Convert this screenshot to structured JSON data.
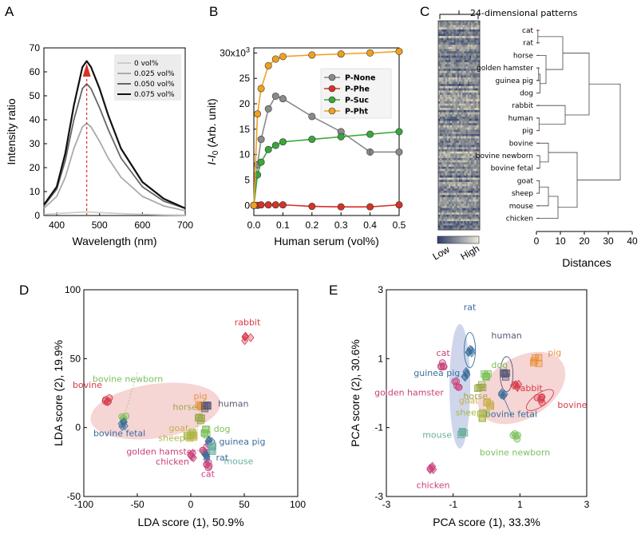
{
  "panels": {
    "A": "A",
    "B": "B",
    "C": "C",
    "D": "D",
    "E": "E"
  },
  "colors": {
    "P-None": "#8a8a8a",
    "P-Phe": "#d63227",
    "P-Suc": "#3aa63a",
    "P-Pht": "#f0a020",
    "cat": "#c8417a",
    "rat": "#3a6e9a",
    "horse": "#9aa84a",
    "golden hamster": "#c8417a",
    "guinea pig": "#3a6e9a",
    "dog": "#7cbf5a",
    "rabbit": "#d63a4a",
    "human": "#5a5a78",
    "pig": "#e8913a",
    "bovine": "#d63a4a",
    "bovine newborn": "#7cbf5a",
    "bovine fetal": "#3a6e9a",
    "goat": "#c8b04a",
    "sheep": "#a8b848",
    "mouse": "#6ab0a0",
    "chicken": "#c8417a"
  },
  "chart_data": [
    {
      "id": "A",
      "type": "line",
      "xlabel": "Wavelength (nm)",
      "ylabel": "Intensity ratio",
      "xlim": [
        370,
        700
      ],
      "ylim": [
        0,
        70
      ],
      "xticks": [
        "400",
        "500",
        "600",
        "700"
      ],
      "yticks": [
        "0",
        "10",
        "20",
        "30",
        "40",
        "50",
        "60",
        "70"
      ],
      "peak_x": 470,
      "series": [
        {
          "name": "0 vol%",
          "color": "#cccccc",
          "x": [
            370,
            400,
            440,
            470,
            500,
            550,
            600,
            650,
            700
          ],
          "values": [
            0.5,
            0.8,
            1.2,
            1.5,
            1.2,
            0.8,
            0.5,
            0.3,
            0.2
          ]
        },
        {
          "name": "0.025 vol%",
          "color": "#aaaaaa",
          "x": [
            370,
            400,
            420,
            440,
            460,
            470,
            480,
            500,
            520,
            550,
            600,
            650,
            700
          ],
          "values": [
            3,
            8,
            16,
            28,
            37,
            38.5,
            37,
            31,
            24,
            16,
            8,
            4,
            2
          ]
        },
        {
          "name": "0.050 vol%",
          "color": "#666666",
          "x": [
            370,
            400,
            420,
            440,
            460,
            470,
            480,
            500,
            520,
            550,
            600,
            650,
            700
          ],
          "values": [
            4,
            11,
            23,
            40,
            53,
            55,
            53,
            45,
            36,
            24,
            12,
            6,
            3
          ]
        },
        {
          "name": "0.075 vol%",
          "color": "#111111",
          "x": [
            370,
            400,
            420,
            440,
            460,
            470,
            480,
            500,
            520,
            550,
            600,
            650,
            700
          ],
          "values": [
            4.5,
            12,
            26,
            46,
            62,
            64.5,
            62,
            53,
            42,
            28,
            14,
            7,
            3
          ]
        }
      ]
    },
    {
      "id": "B",
      "type": "line",
      "xlabel": "Human serum (vol%)",
      "ylabel": "I-I0 (Arb. unit)",
      "ylabel_main": "I",
      "ylabel_dash": "-",
      "ylabel_sub": "0",
      "ylabel_unit": " (Arb. unit)",
      "xlim": [
        0,
        0.5
      ],
      "ylim": [
        -2,
        31
      ],
      "xticks": [
        "0.0",
        "0.1",
        "0.2",
        "0.3",
        "0.4",
        "0.5"
      ],
      "yticks": [
        "0",
        "5",
        "10",
        "15",
        "20",
        "25"
      ],
      "ytop_label": "30x10",
      "ytop_exp": "3",
      "x": [
        0,
        0.0125,
        0.025,
        0.05,
        0.075,
        0.1,
        0.2,
        0.3,
        0.4,
        0.5
      ],
      "series": [
        {
          "name": "P-None",
          "values": [
            0,
            8,
            13,
            19,
            21.5,
            21,
            17.5,
            14.5,
            10.5,
            10.5
          ]
        },
        {
          "name": "P-Phe",
          "values": [
            0,
            0,
            0.1,
            0.1,
            0.1,
            0.1,
            -0.2,
            -0.3,
            -0.3,
            0.1
          ]
        },
        {
          "name": "P-Suc",
          "values": [
            0,
            6,
            8.5,
            11,
            11.8,
            12.5,
            13,
            13.5,
            14,
            14.5
          ]
        },
        {
          "name": "P-Pht",
          "values": [
            0,
            18,
            23,
            27.5,
            28.8,
            29.3,
            29.6,
            29.8,
            30,
            30.3
          ]
        }
      ]
    },
    {
      "id": "C",
      "type": "heatmap",
      "title": "24-dimensional patterns",
      "xlabel": "Distances",
      "xlim": [
        0,
        40
      ],
      "xticks": [
        "0",
        "10",
        "20",
        "30",
        "40"
      ],
      "scale_low": "Low",
      "scale_high": "High",
      "leaves": [
        "cat",
        "rat",
        "horse",
        "golden hamster",
        "guinea pig",
        "dog",
        "rabbit",
        "human",
        "pig",
        "bovine",
        "bovine newborn",
        "bovine fetal",
        "goat",
        "sheep",
        "mouse",
        "chicken"
      ]
    },
    {
      "id": "D",
      "type": "scatter",
      "xlabel": "LDA score (1), 50.9%",
      "ylabel": "LDA score (2), 19.9%",
      "xlim": [
        -100,
        100
      ],
      "ylim": [
        -50,
        100
      ],
      "xticks": [
        "-100",
        "-50",
        "0",
        "50",
        "100"
      ],
      "yticks": [
        "-50",
        "0",
        "50",
        "100"
      ],
      "points": [
        {
          "name": "rabbit",
          "x": 53,
          "y": 65
        },
        {
          "name": "bovine newborn",
          "x": -62,
          "y": 7
        },
        {
          "name": "bovine",
          "x": -78,
          "y": 20
        },
        {
          "name": "bovine fetal",
          "x": -63,
          "y": 3
        },
        {
          "name": "pig",
          "x": 9,
          "y": 15
        },
        {
          "name": "human",
          "x": 15,
          "y": 14
        },
        {
          "name": "horse",
          "x": 9,
          "y": 7
        },
        {
          "name": "goat",
          "x": 1,
          "y": -6
        },
        {
          "name": "sheep",
          "x": -1,
          "y": -5
        },
        {
          "name": "dog",
          "x": 14,
          "y": -3
        },
        {
          "name": "guinea pig",
          "x": 19,
          "y": -10
        },
        {
          "name": "golden hamster",
          "x": 12,
          "y": -16
        },
        {
          "name": "mouse",
          "x": 22,
          "y": -15
        },
        {
          "name": "rat",
          "x": 16,
          "y": -21
        },
        {
          "name": "chicken",
          "x": 0,
          "y": -20
        },
        {
          "name": "cat",
          "x": 16,
          "y": -27
        }
      ]
    },
    {
      "id": "E",
      "type": "scatter",
      "xlabel": "PCA score (1), 33.3%",
      "ylabel": "PCA score (2), 30.6%",
      "xlim": [
        -3,
        3
      ],
      "ylim": [
        -3,
        3
      ],
      "xticks": [
        "-3",
        "-1",
        "1",
        "3"
      ],
      "yticks": [
        "-3",
        "-1",
        "1",
        "3"
      ],
      "points": [
        {
          "name": "rat",
          "x": -0.5,
          "y": 1.25
        },
        {
          "name": "cat",
          "x": -1.3,
          "y": 0.85
        },
        {
          "name": "guinea pig",
          "x": -0.65,
          "y": 0.55
        },
        {
          "name": "dog",
          "x": -0.05,
          "y": 0.55
        },
        {
          "name": "golden hamster",
          "x": -0.9,
          "y": 0.25
        },
        {
          "name": "horse",
          "x": -0.2,
          "y": 0.2
        },
        {
          "name": "human",
          "x": 0.6,
          "y": 0.55
        },
        {
          "name": "pig",
          "x": 1.5,
          "y": 0.95
        },
        {
          "name": "rabbit",
          "x": 0.9,
          "y": 0.2
        },
        {
          "name": "bovine",
          "x": 1.6,
          "y": -0.2
        },
        {
          "name": "goat",
          "x": 0.05,
          "y": -0.3
        },
        {
          "name": "bovine fetal",
          "x": 0.5,
          "y": -0.05
        },
        {
          "name": "sheep",
          "x": -0.1,
          "y": -0.65
        },
        {
          "name": "mouse",
          "x": -0.75,
          "y": -1.2
        },
        {
          "name": "bovine newborn",
          "x": 0.85,
          "y": -1.25
        },
        {
          "name": "chicken",
          "x": -1.6,
          "y": -2.15
        }
      ]
    }
  ]
}
